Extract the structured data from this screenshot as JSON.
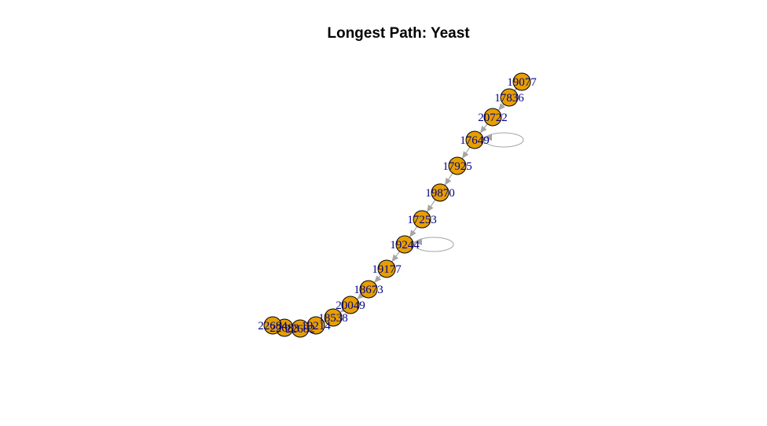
{
  "title": "Longest Path: Yeast",
  "graph": {
    "node_fill": "#e69f00",
    "node_stroke": "#000000",
    "edge_color": "#a6a6a6",
    "label_color": "#00008b",
    "nodes": [
      "19077",
      "17836",
      "20722",
      "17649",
      "17925",
      "19870",
      "17253",
      "19244",
      "19177",
      "18673",
      "20049",
      "18538",
      "19214",
      "22682",
      "22683",
      "22684"
    ],
    "edges": [
      [
        "19077",
        "17836"
      ],
      [
        "17836",
        "20722"
      ],
      [
        "20722",
        "17649"
      ],
      [
        "17649",
        "17925"
      ],
      [
        "17925",
        "19870"
      ],
      [
        "19870",
        "17253"
      ],
      [
        "17253",
        "19244"
      ],
      [
        "19244",
        "19177"
      ],
      [
        "19177",
        "18673"
      ],
      [
        "18673",
        "20049"
      ],
      [
        "20049",
        "18538"
      ],
      [
        "18538",
        "19214"
      ],
      [
        "19214",
        "22682"
      ],
      [
        "22682",
        "22683"
      ],
      [
        "22683",
        "22684"
      ]
    ],
    "self_loops": [
      "17649",
      "19244"
    ]
  }
}
